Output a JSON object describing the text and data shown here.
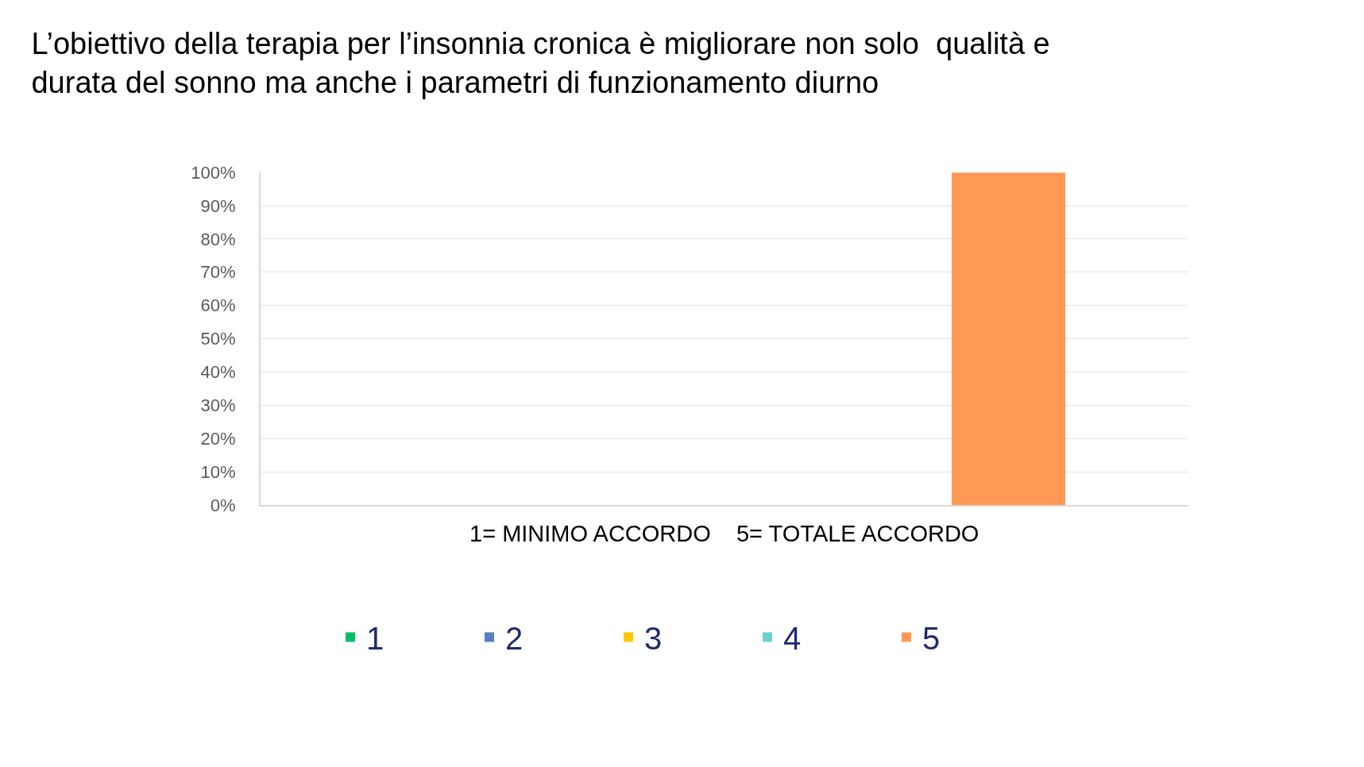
{
  "chart_data": {
    "type": "bar",
    "title": "L’obiettivo della terapia per l’insonnia cronica è migliorare non solo  qualità e durata del sonno ma anche i parametri di funzionamento diurno",
    "xlabel": "1= MINIMO ACCORDO    5= TOTALE ACCORDO",
    "categories": [
      null
    ],
    "series": [
      {
        "name": "1",
        "color": "#00c06e",
        "values": [
          0
        ]
      },
      {
        "name": "2",
        "color": "#5581c2",
        "values": [
          0
        ]
      },
      {
        "name": "3",
        "color": "#ffc800",
        "values": [
          0
        ]
      },
      {
        "name": "4",
        "color": "#6ccfd0",
        "values": [
          0
        ]
      },
      {
        "name": "5",
        "color": "#ff9955",
        "values": [
          100
        ]
      }
    ],
    "ylim": [
      0,
      100
    ],
    "yticks": [
      {
        "value": 0,
        "label": "0%"
      },
      {
        "value": 10,
        "label": "10%"
      },
      {
        "value": 20,
        "label": "20%"
      },
      {
        "value": 30,
        "label": "30%"
      },
      {
        "value": 40,
        "label": "40%"
      },
      {
        "value": 50,
        "label": "50%"
      },
      {
        "value": 60,
        "label": "60%"
      },
      {
        "value": 70,
        "label": "70%"
      },
      {
        "value": 80,
        "label": "80%"
      },
      {
        "value": 90,
        "label": "90%"
      },
      {
        "value": 100,
        "label": "100%"
      }
    ],
    "grid": "y",
    "legend": "bottom"
  }
}
